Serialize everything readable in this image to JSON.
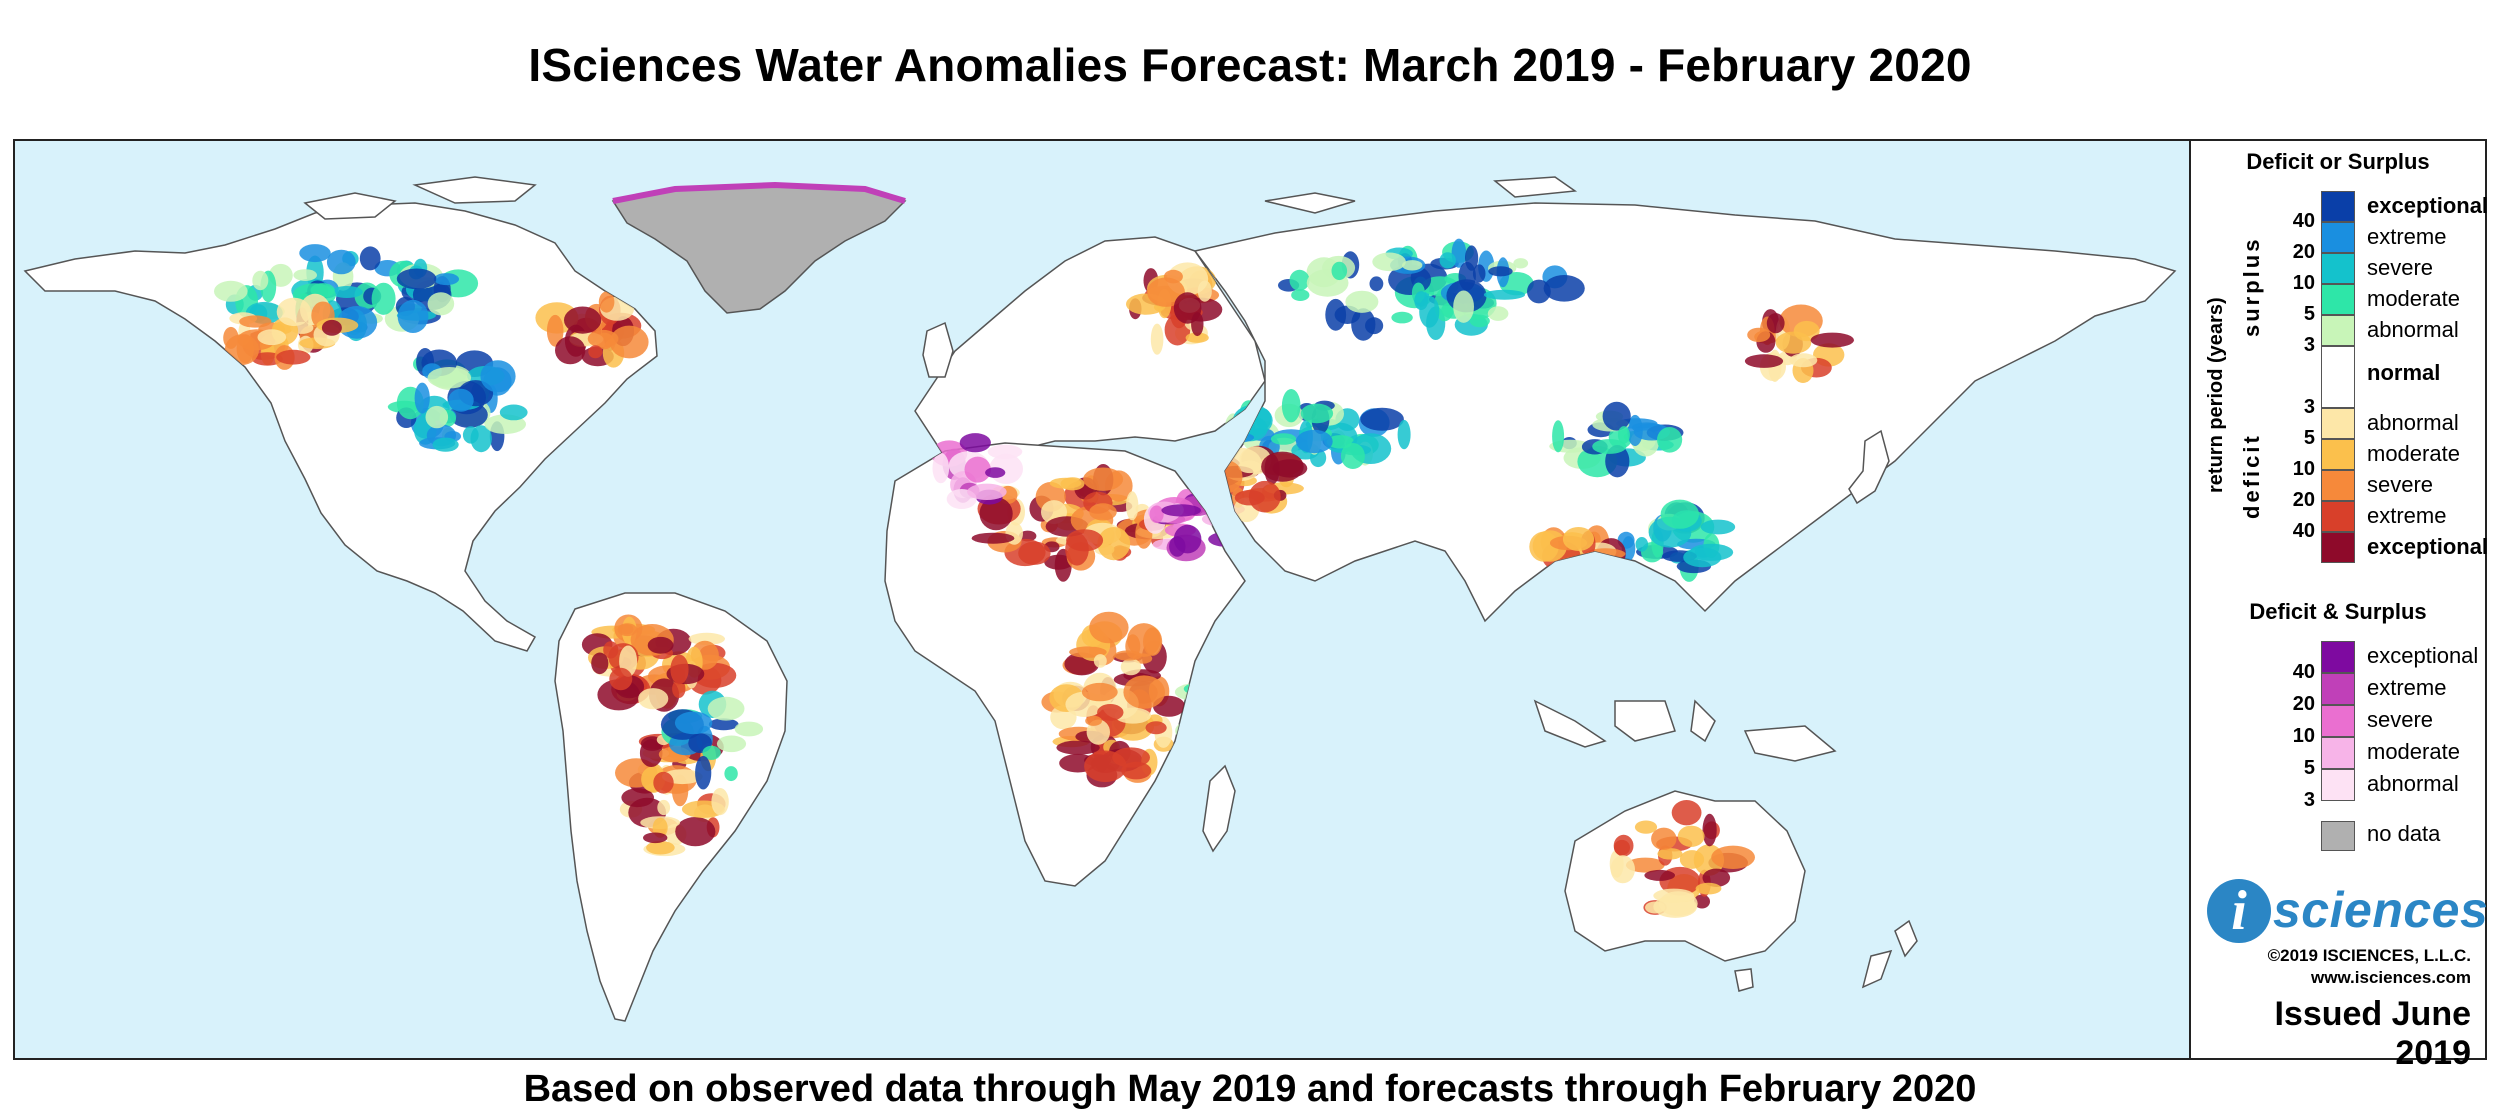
{
  "title": "ISciences Water Anomalies Forecast: March 2019 - February 2020",
  "subtitle": "Based on observed data through May 2019 and forecasts through February 2020",
  "legend": {
    "deficit_or_surplus_title": "Deficit or Surplus",
    "axis_label": "return period (years)",
    "surplus_label": "surplus",
    "deficit_label": "deficit",
    "surplus_items": [
      {
        "label": "exceptional",
        "color": "#0a3fa8",
        "bold": true
      },
      {
        "label": "extreme",
        "color": "#1a8fe0",
        "bold": false
      },
      {
        "label": "severe",
        "color": "#14c2cc",
        "bold": false
      },
      {
        "label": "moderate",
        "color": "#2ee6a8",
        "bold": false
      },
      {
        "label": "abnormal",
        "color": "#c8f5b8",
        "bold": false
      }
    ],
    "normal": {
      "label": "normal",
      "color": "#ffffff"
    },
    "deficit_items": [
      {
        "label": "abnormal",
        "color": "#fde7a8",
        "bold": false
      },
      {
        "label": "moderate",
        "color": "#fbc04c",
        "bold": false
      },
      {
        "label": "severe",
        "color": "#f6893a",
        "bold": false
      },
      {
        "label": "extreme",
        "color": "#d8402a",
        "bold": false
      },
      {
        "label": "exceptional",
        "color": "#8e0a2a",
        "bold": true
      }
    ],
    "surplus_ticks": [
      "40",
      "20",
      "10",
      "5",
      "3"
    ],
    "deficit_ticks": [
      "3",
      "5",
      "10",
      "20",
      "40"
    ],
    "deficit_and_surplus_title": "Deficit & Surplus",
    "both_items": [
      {
        "label": "exceptional",
        "color": "#7e0aa0"
      },
      {
        "label": "extreme",
        "color": "#c040b8"
      },
      {
        "label": "severe",
        "color": "#ea6fd0"
      },
      {
        "label": "moderate",
        "color": "#f7b4e8"
      },
      {
        "label": "abnormal",
        "color": "#fde2f4"
      }
    ],
    "both_ticks": [
      "40",
      "20",
      "10",
      "5",
      "3"
    ],
    "no_data": {
      "label": "no data",
      "color": "#b0b0b0"
    }
  },
  "logo": {
    "i": "i",
    "word": "sciences"
  },
  "copyright": "©2019 ISCIENCES, L.L.C.",
  "website": "www.isciences.com",
  "issued": "Issued June 2019",
  "colors": {
    "ocean": "#d8f2fb",
    "land": "#ffffff",
    "border": "#555555"
  }
}
